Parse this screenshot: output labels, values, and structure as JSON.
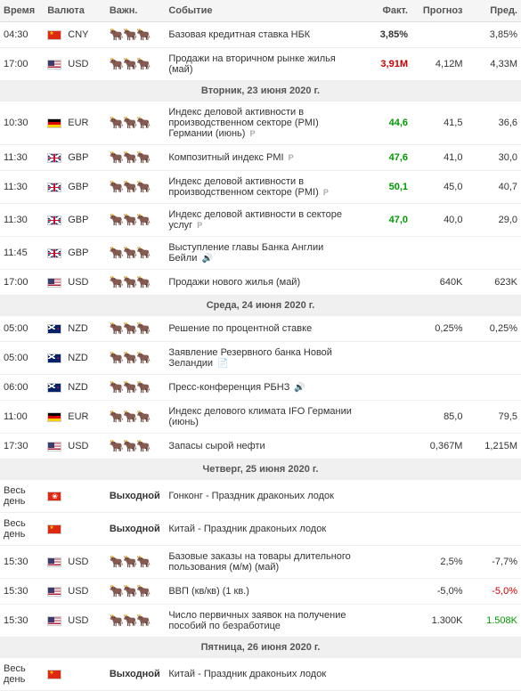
{
  "headers": {
    "time": "Время",
    "currency": "Валюта",
    "importance": "Важн.",
    "event": "Событие",
    "fact": "Факт.",
    "forecast": "Прогноз",
    "prev": "Пред."
  },
  "colors": {
    "red": "#c00",
    "green": "#090",
    "neutral": "#333"
  },
  "rows": [
    {
      "type": "event",
      "time": "04:30",
      "flag": "cn",
      "cur": "CNY",
      "imp": "dark",
      "evt": "Базовая кредитная ставка НБК",
      "fact": "3,85%",
      "fact_cls": "",
      "fc": "",
      "pv": "3,85%"
    },
    {
      "type": "event",
      "time": "17:00",
      "flag": "us",
      "cur": "USD",
      "imp": "dark",
      "evt": "Продажи на вторичном рынке жилья (май)",
      "fact": "3,91M",
      "fact_cls": "red",
      "fc": "4,12M",
      "pv": "4,33M"
    },
    {
      "type": "date",
      "label": "Вторник, 23 июня 2020 г."
    },
    {
      "type": "event",
      "time": "10:30",
      "flag": "de",
      "cur": "EUR",
      "imp": "dark",
      "evt": "Индекс деловой активности в производственном секторе (PMI) Германии (июнь)",
      "suffix": "p",
      "fact": "44,6",
      "fact_cls": "green",
      "fc": "41,5",
      "pv": "36,6"
    },
    {
      "type": "event",
      "time": "11:30",
      "flag": "gb",
      "cur": "GBP",
      "imp": "dark",
      "evt": "Композитный индекс PMI",
      "suffix": "p",
      "fact": "47,6",
      "fact_cls": "green",
      "fc": "41,0",
      "pv": "30,0"
    },
    {
      "type": "event",
      "time": "11:30",
      "flag": "gb",
      "cur": "GBP",
      "imp": "dark",
      "evt": "Индекс деловой активности в производственном секторе (PMI)",
      "suffix": "p",
      "fact": "50,1",
      "fact_cls": "green",
      "fc": "45,0",
      "pv": "40,7"
    },
    {
      "type": "event",
      "time": "11:30",
      "flag": "gb",
      "cur": "GBP",
      "imp": "dark",
      "evt": "Индекс деловой активности в секторе услуг",
      "suffix": "p",
      "fact": "47,0",
      "fact_cls": "green",
      "fc": "40,0",
      "pv": "29,0"
    },
    {
      "type": "event",
      "time": "11:45",
      "flag": "gb",
      "cur": "GBP",
      "imp": "light",
      "evt": "Выступление главы Банка Англии Бейли",
      "suffix": "sp",
      "fact": "",
      "fc": "",
      "pv": ""
    },
    {
      "type": "event",
      "time": "17:00",
      "flag": "us",
      "cur": "USD",
      "imp": "dark",
      "evt": "Продажи нового жилья (май)",
      "fact": "",
      "fc": "640K",
      "pv": "623K"
    },
    {
      "type": "date",
      "label": "Среда, 24 июня 2020 г."
    },
    {
      "type": "event",
      "time": "05:00",
      "flag": "nz",
      "cur": "NZD",
      "imp": "dark",
      "evt": "Решение по процентной ставке",
      "fact": "",
      "fc": "0,25%",
      "pv": "0,25%"
    },
    {
      "type": "event",
      "time": "05:00",
      "flag": "nz",
      "cur": "NZD",
      "imp": "dark",
      "evt": "Заявление Резервного банка Новой Зеландии",
      "suffix": "doc",
      "fact": "",
      "fc": "",
      "pv": ""
    },
    {
      "type": "event",
      "time": "06:00",
      "flag": "nz",
      "cur": "NZD",
      "imp": "light",
      "evt": "Пресс-конференция РБНЗ",
      "suffix": "sp",
      "fact": "",
      "fc": "",
      "pv": ""
    },
    {
      "type": "event",
      "time": "11:00",
      "flag": "de",
      "cur": "EUR",
      "imp": "dark",
      "evt": "Индекс делового климата IFO Германии (июнь)",
      "fact": "",
      "fc": "85,0",
      "pv": "79,5"
    },
    {
      "type": "event",
      "time": "17:30",
      "flag": "us",
      "cur": "USD",
      "imp": "dark",
      "evt": "Запасы сырой нефти",
      "fact": "",
      "fc": "0,367M",
      "pv": "1,215M"
    },
    {
      "type": "date",
      "label": "Четверг, 25 июня 2020 г."
    },
    {
      "type": "holiday",
      "time": "Весь день",
      "flag": "hk",
      "cur_label": "Выходной",
      "evt": "Гонконг - Праздник драконьих лодок"
    },
    {
      "type": "holiday",
      "time": "Весь день",
      "flag": "cn",
      "cur_label": "Выходной",
      "evt": "Китай - Праздник драконьих лодок"
    },
    {
      "type": "event",
      "time": "15:30",
      "flag": "us",
      "cur": "USD",
      "imp": "dark",
      "evt": "Базовые заказы на товары длительного пользования (м/м) (май)",
      "fact": "",
      "fc": "2,5%",
      "pv": "-7,7%"
    },
    {
      "type": "event",
      "time": "15:30",
      "flag": "us",
      "cur": "USD",
      "imp": "dark",
      "evt": "ВВП (кв/кв) (1 кв.)",
      "fact": "",
      "fc": "-5,0%",
      "pv": "-5,0%",
      "pv_cls": "neg"
    },
    {
      "type": "event",
      "time": "15:30",
      "flag": "us",
      "cur": "USD",
      "imp": "dark",
      "evt": "Число первичных заявок на получение пособий по безработице",
      "fact": "",
      "fc": "1.300K",
      "pv": "1.508K",
      "pv_cls": "pos"
    },
    {
      "type": "date",
      "label": "Пятница, 26 июня 2020 г."
    },
    {
      "type": "holiday",
      "time": "Весь день",
      "flag": "cn",
      "cur_label": "Выходной",
      "evt": "Китай - Праздник драконьих лодок"
    }
  ]
}
